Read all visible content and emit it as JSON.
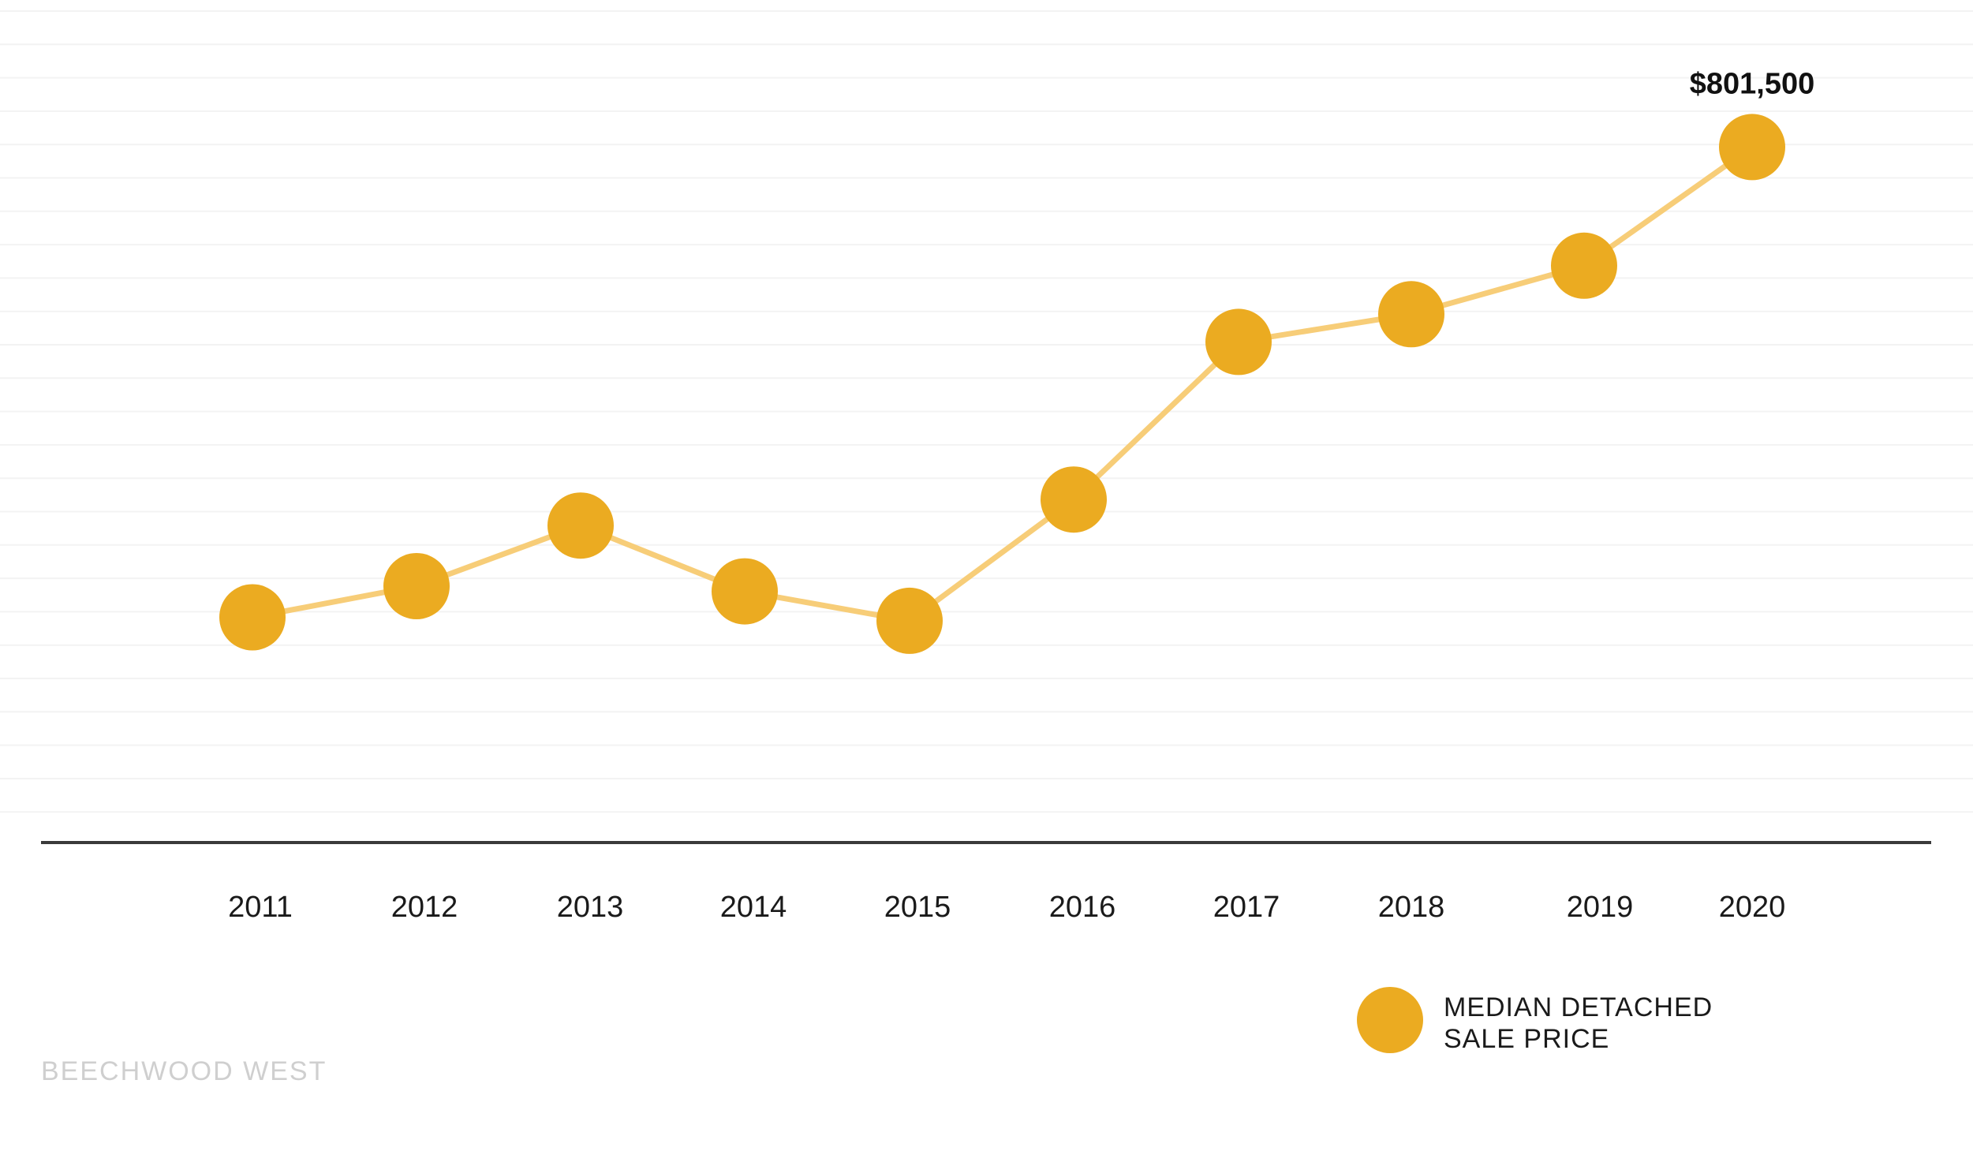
{
  "chart_data": {
    "type": "line",
    "x": [
      "2011",
      "2012",
      "2013",
      "2014",
      "2015",
      "2016",
      "2017",
      "2018",
      "2019",
      "2020"
    ],
    "series": [
      {
        "name": "MEDIAN DETACHED SALE PRICE",
        "values": [
          530000,
          548000,
          583000,
          545000,
          528000,
          598000,
          689000,
          705000,
          733000,
          801500
        ]
      }
    ],
    "annotations": [
      {
        "x": "2020",
        "text": "$801,500"
      }
    ],
    "ylim": [
      400000,
      880000
    ],
    "grid": true,
    "legend": {
      "position": "bottom-right",
      "lines": [
        "MEDIAN DETACHED",
        "SALE PRICE"
      ]
    },
    "title": "",
    "xlabel": "",
    "ylabel": ""
  },
  "brand": {
    "watermark": "BEECHWOOD WEST"
  },
  "colors": {
    "point": "#ebab21",
    "line": "#f7cd78",
    "axis": "#3a3a3a",
    "grid": "#f3f3f3"
  }
}
